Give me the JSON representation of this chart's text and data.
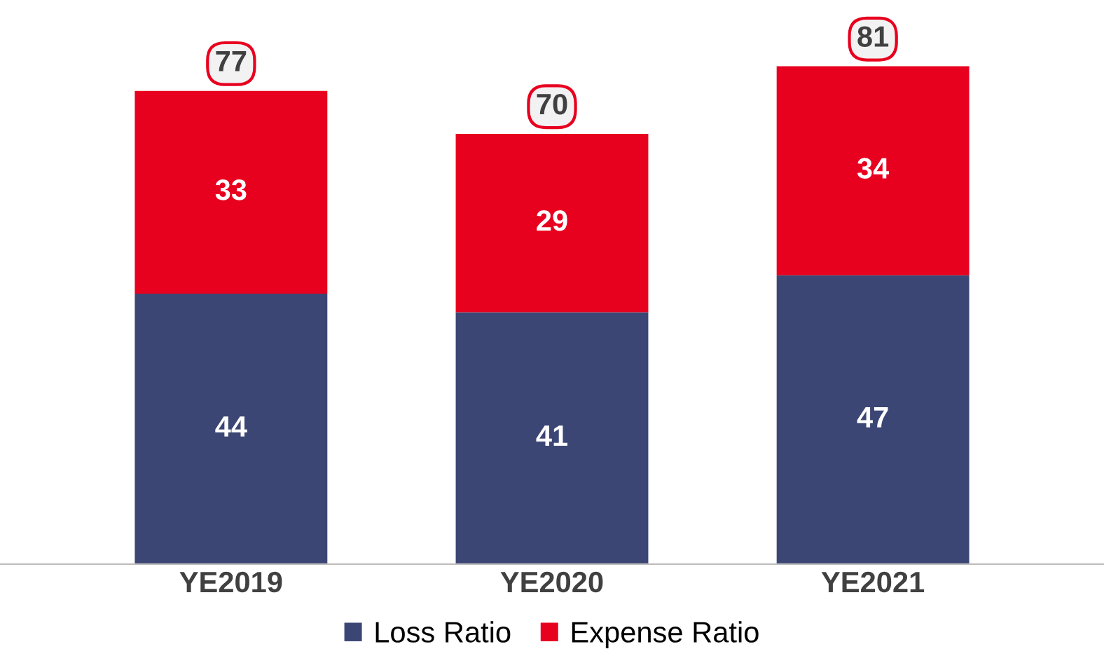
{
  "chart_data": {
    "type": "bar",
    "stacked": true,
    "categories": [
      "YE2019",
      "YE2020",
      "YE2021"
    ],
    "series": [
      {
        "name": "Loss Ratio",
        "color": "#3b4674",
        "values": [
          44,
          41,
          47
        ]
      },
      {
        "name": "Expense Ratio",
        "color": "#e8001f",
        "values": [
          33,
          29,
          34
        ]
      }
    ],
    "totals": [
      "77",
      "70",
      "81"
    ],
    "data_labels": true,
    "legend": "bottom",
    "grid": false
  }
}
